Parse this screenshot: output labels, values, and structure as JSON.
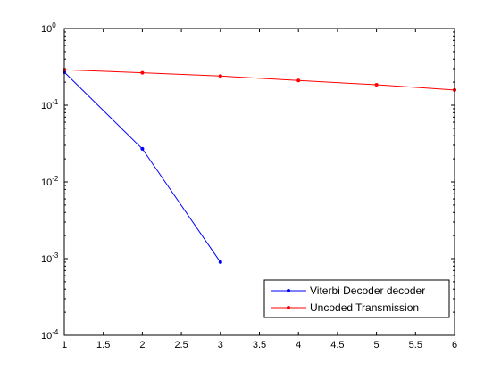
{
  "chart_data": {
    "type": "line",
    "title": "",
    "xlabel": "",
    "ylabel": "",
    "xlim": [
      1,
      6
    ],
    "ylim": [
      0.0001,
      1
    ],
    "yscale": "log",
    "grid": false,
    "legend_position": "bottom-right",
    "x_ticks": [
      "1",
      "1.5",
      "2",
      "2.5",
      "3",
      "3.5",
      "4",
      "4.5",
      "5",
      "5.5",
      "6"
    ],
    "y_ticks": [
      {
        "base": "10",
        "exp": "-4"
      },
      {
        "base": "10",
        "exp": "-3"
      },
      {
        "base": "10",
        "exp": "-2"
      },
      {
        "base": "10",
        "exp": "-1"
      },
      {
        "base": "10",
        "exp": "0"
      }
    ],
    "series": [
      {
        "name": "Viterbi Decoder decoder",
        "color": "#0000ff",
        "marker": "dot",
        "x": [
          1,
          2,
          3
        ],
        "y": [
          0.27,
          0.027,
          0.0009
        ]
      },
      {
        "name": "Uncoded Transmission",
        "color": "#ff0000",
        "marker": "dot",
        "x": [
          1,
          2,
          3,
          4,
          5,
          6
        ],
        "y": [
          0.29,
          0.265,
          0.24,
          0.21,
          0.185,
          0.158
        ]
      }
    ]
  }
}
